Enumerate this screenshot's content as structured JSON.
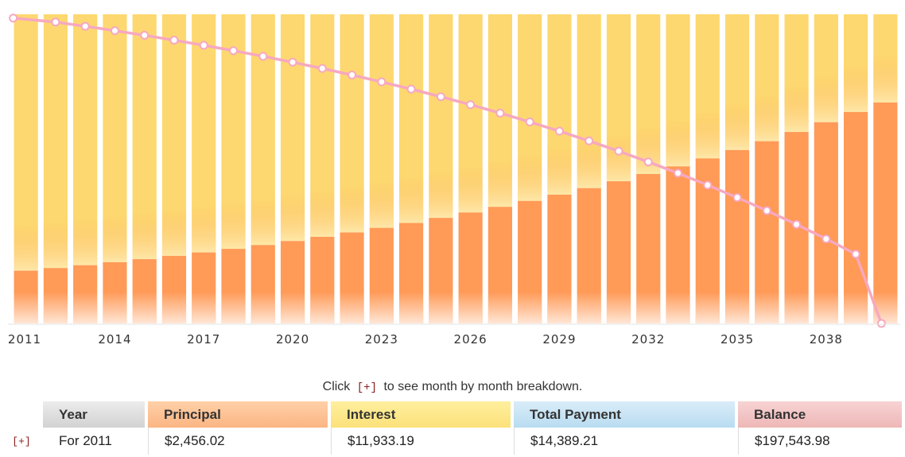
{
  "chart_data": {
    "type": "bar",
    "stacked": true,
    "categories": [
      "2011",
      "2012",
      "2013",
      "2014",
      "2015",
      "2016",
      "2017",
      "2018",
      "2019",
      "2020",
      "2021",
      "2022",
      "2023",
      "2024",
      "2025",
      "2026",
      "2027",
      "2028",
      "2029",
      "2030",
      "2031",
      "2032",
      "2033",
      "2034",
      "2035",
      "2036",
      "2037",
      "2038",
      "2039",
      "2040"
    ],
    "tick_labels": [
      "2011",
      "2014",
      "2017",
      "2020",
      "2023",
      "2026",
      "2029",
      "2032",
      "2035",
      "2038"
    ],
    "series": [
      {
        "key": "principal",
        "values": [
          2456,
          2580,
          2711,
          2849,
          2994,
          3146,
          3306,
          3474,
          3650,
          3836,
          4031,
          4236,
          4451,
          4677,
          4915,
          5165,
          5428,
          5704,
          5994,
          6299,
          6619,
          6956,
          7309,
          7681,
          8072,
          8482,
          8913,
          9366,
          9843,
          10283
        ],
        "color": "#ff9a57"
      },
      {
        "key": "interest",
        "values": [
          11933,
          11809,
          11678,
          11540,
          11395,
          11243,
          11083,
          10915,
          10739,
          10553,
          10358,
          10153,
          9938,
          9712,
          9474,
          9224,
          8961,
          8685,
          8395,
          8090,
          7770,
          7433,
          7080,
          6708,
          6317,
          5907,
          5476,
          5023,
          4546,
          4106
        ],
        "color": "#fdd870"
      },
      {
        "key": "balance",
        "type": "line",
        "values": [
          197544,
          194964,
          192253,
          189404,
          186410,
          183264,
          179958,
          176484,
          172834,
          168998,
          164967,
          160731,
          156280,
          151603,
          146688,
          141523,
          136095,
          130391,
          124397,
          118098,
          111479,
          104523,
          97214,
          89533,
          81461,
          72979,
          64066,
          54700,
          44857,
          0
        ],
        "color": "#f7a8c0"
      }
    ],
    "ylim": [
      0,
      14389.21
    ],
    "balance_ylim": [
      0,
      200000
    ],
    "legend": "none",
    "grid": false
  },
  "table": {
    "note_before": "Click",
    "note_plus": "[+]",
    "note_after": "to see month by month breakdown.",
    "headers": {
      "year": "Year",
      "principal": "Principal",
      "interest": "Interest",
      "total": "Total Payment",
      "balance": "Balance"
    },
    "rows": [
      {
        "expand": "[+]",
        "year": "For 2011",
        "principal": "$2,456.02",
        "interest": "$11,933.19",
        "total": "$14,389.21",
        "balance": "$197,543.98"
      }
    ]
  },
  "colors": {
    "principal": "#ff9a57",
    "interest": "#fdd870",
    "balance_line": "#f7a8c0"
  }
}
